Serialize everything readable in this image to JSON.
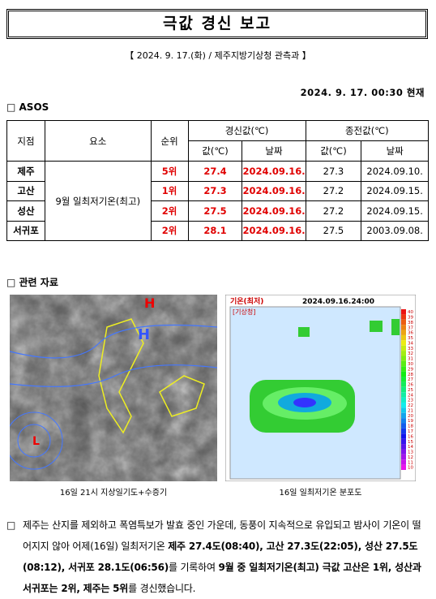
{
  "header": {
    "title": "극값 경신 보고",
    "subtitle": "【 2024. 9. 17.(화) / 제주지방기상청 관측과 】",
    "datetime": "2024. 9. 17. 00:30 현재"
  },
  "section1": {
    "heading": "□ ASOS"
  },
  "table": {
    "headers": {
      "station": "지점",
      "element": "요소",
      "rank": "순위",
      "new": "경신값(℃)",
      "old": "종전값(℃)",
      "value": "값(℃)",
      "date": "날짜"
    },
    "element": "9월 일최저기온(최고)",
    "rows": [
      {
        "station": "제주",
        "rank": "5위",
        "new_value": "27.4",
        "new_date": "2024.09.16.",
        "old_value": "27.3",
        "old_date": "2024.09.10."
      },
      {
        "station": "고산",
        "rank": "1위",
        "new_value": "27.3",
        "new_date": "2024.09.16.",
        "old_value": "27.2",
        "old_date": "2024.09.15."
      },
      {
        "station": "성산",
        "rank": "2위",
        "new_value": "27.5",
        "new_date": "2024.09.16.",
        "old_value": "27.2",
        "old_date": "2024.09.15."
      },
      {
        "station": "서귀포",
        "rank": "2위",
        "new_value": "28.1",
        "new_date": "2024.09.16.",
        "old_value": "27.5",
        "old_date": "2003.09.08."
      }
    ]
  },
  "section2": {
    "heading": "□ 관련 자료"
  },
  "figures": [
    {
      "caption": "16일 21시 지상일기도+수증기",
      "labels": [
        "H",
        "L",
        "H"
      ]
    },
    {
      "caption": "16일 일최저기온 분포도",
      "title": "기온(최저)",
      "time": "2024.09.16.24:00",
      "source": "[기상청]",
      "colorbar": [
        40,
        39,
        38,
        37,
        36,
        35,
        34,
        33,
        32,
        31,
        30,
        29,
        28,
        27,
        26,
        25,
        24,
        23,
        22,
        21,
        20,
        19,
        18,
        17,
        16,
        15,
        14,
        13,
        12,
        11,
        10
      ]
    }
  ],
  "summary": {
    "bullet": "□",
    "segments": [
      {
        "text": "제주는 산지를 제외하고 폭염특보가 발효 중인 가운데, 동풍이 지속적으로 유입되고 밤사이 기온이 떨어지지 않아 어제(16일) 일최저기온 ",
        "bold": false
      },
      {
        "text": "제주 27.4도(08:40), 고산 27.3도(22:05), 성산 27.5도(08:12), 서귀포 28.1도(06:56)",
        "bold": true
      },
      {
        "text": "를 기록하여 ",
        "bold": false
      },
      {
        "text": "9월 중 일최저기온(최고) 극값 고산은 1위, 성산과 서귀포는 2위, 제주는 5위",
        "bold": true
      },
      {
        "text": "를 경신했습니다.",
        "bold": false
      }
    ]
  }
}
